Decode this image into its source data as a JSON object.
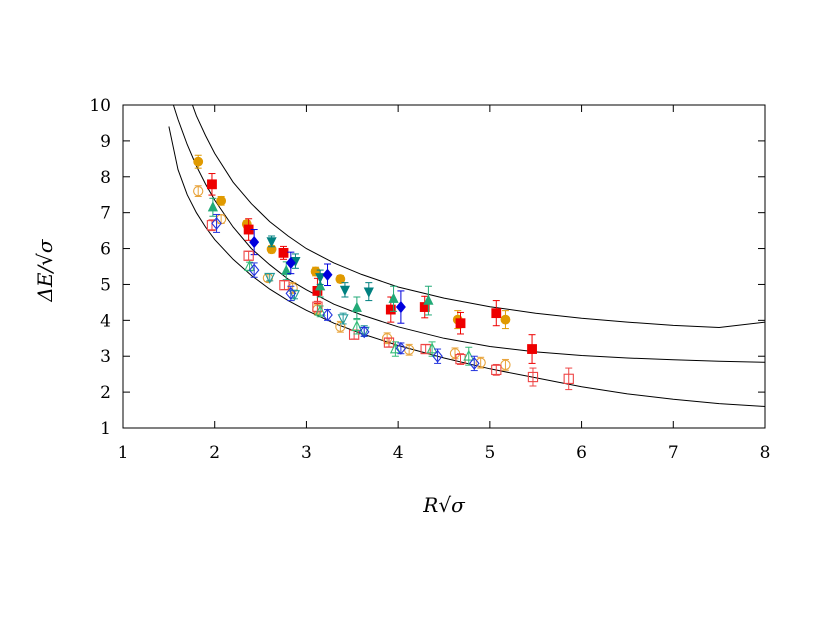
{
  "chart_data": {
    "type": "scatter",
    "title": "",
    "xlabel": "R√σ",
    "ylabel": "ΔE/√σ",
    "xlim": [
      1,
      8
    ],
    "ylim": [
      1,
      10
    ],
    "xticks": [
      1,
      2,
      3,
      4,
      5,
      6,
      7,
      8
    ],
    "yticks": [
      1,
      2,
      3,
      4,
      5,
      6,
      7,
      8,
      9,
      10
    ],
    "grid": false,
    "legend": "none",
    "curves": [
      {
        "color": "#000000",
        "x": [
          1.7,
          1.8,
          1.9,
          2.0,
          2.2,
          2.4,
          2.6,
          2.8,
          3.0,
          3.3,
          3.6,
          4.0,
          4.5,
          5.0,
          5.5,
          6.0,
          6.5,
          7.0,
          7.5,
          8.0
        ],
        "y": [
          10.4,
          9.7,
          9.15,
          8.65,
          7.85,
          7.25,
          6.75,
          6.35,
          6.0,
          5.6,
          5.28,
          4.93,
          4.62,
          4.38,
          4.2,
          4.06,
          3.95,
          3.86,
          3.8,
          3.95
        ]
      },
      {
        "color": "#000000",
        "x": [
          1.55,
          1.6,
          1.7,
          1.8,
          1.9,
          2.0,
          2.2,
          2.4,
          2.6,
          2.8,
          3.0,
          3.3,
          3.6,
          4.0,
          4.5,
          5.0,
          5.5,
          6.0,
          6.5,
          7.0,
          7.5,
          8.0
        ],
        "y": [
          10.0,
          9.6,
          8.9,
          8.3,
          7.8,
          7.35,
          6.6,
          6.0,
          5.55,
          5.15,
          4.85,
          4.45,
          4.15,
          3.82,
          3.5,
          3.27,
          3.12,
          3.02,
          2.95,
          2.9,
          2.86,
          2.83
        ]
      },
      {
        "color": "#000000",
        "x": [
          1.5,
          1.6,
          1.7,
          1.8,
          1.9,
          2.0,
          2.2,
          2.4,
          2.6,
          2.8,
          3.0,
          3.3,
          3.6,
          4.0,
          4.5,
          5.0,
          5.5,
          6.0,
          6.5,
          7.0,
          7.5,
          8.0
        ],
        "y": [
          9.4,
          8.2,
          7.5,
          7.0,
          6.6,
          6.25,
          5.7,
          5.25,
          4.87,
          4.55,
          4.28,
          3.92,
          3.63,
          3.3,
          2.95,
          2.65,
          2.4,
          2.15,
          1.95,
          1.8,
          1.68,
          1.6
        ]
      }
    ],
    "series": [
      {
        "marker": "circle-filled",
        "color": "#e09a00",
        "points": [
          {
            "x": 1.82,
            "y": 8.42,
            "e": 0.18
          },
          {
            "x": 2.07,
            "y": 7.33,
            "e": 0.12
          },
          {
            "x": 2.35,
            "y": 6.68,
            "e": 0.1
          },
          {
            "x": 2.62,
            "y": 5.98,
            "e": 0.1
          },
          {
            "x": 3.1,
            "y": 5.36,
            "e": 0.12
          },
          {
            "x": 3.37,
            "y": 5.15,
            "e": 0.1
          },
          {
            "x": 4.65,
            "y": 4.02,
            "e": 0.25
          },
          {
            "x": 5.17,
            "y": 4.02,
            "e": 0.25
          }
        ]
      },
      {
        "marker": "square-filled",
        "color": "#ee0000",
        "points": [
          {
            "x": 1.97,
            "y": 7.79,
            "e": 0.3
          },
          {
            "x": 2.37,
            "y": 6.53,
            "e": 0.3
          },
          {
            "x": 2.75,
            "y": 5.88,
            "e": 0.18
          },
          {
            "x": 3.12,
            "y": 4.82,
            "e": 0.35
          },
          {
            "x": 3.92,
            "y": 4.3,
            "e": 0.35
          },
          {
            "x": 4.29,
            "y": 4.37,
            "e": 0.3
          },
          {
            "x": 4.68,
            "y": 3.92,
            "e": 0.3
          },
          {
            "x": 5.07,
            "y": 4.2,
            "e": 0.35
          },
          {
            "x": 5.46,
            "y": 3.2,
            "e": 0.4
          }
        ]
      },
      {
        "marker": "triangle-up-filled",
        "color": "#22aa77",
        "points": [
          {
            "x": 1.98,
            "y": 7.15,
            "e": 0.25
          },
          {
            "x": 2.78,
            "y": 5.38,
            "e": 0.25
          },
          {
            "x": 3.15,
            "y": 4.95,
            "e": 0.3
          },
          {
            "x": 3.55,
            "y": 4.35,
            "e": 0.3
          },
          {
            "x": 3.95,
            "y": 4.6,
            "e": 0.35
          },
          {
            "x": 4.33,
            "y": 4.55,
            "e": 0.4
          }
        ]
      },
      {
        "marker": "triangle-down-filled",
        "color": "#008080",
        "points": [
          {
            "x": 2.62,
            "y": 6.2,
            "e": 0.15
          },
          {
            "x": 2.88,
            "y": 5.65,
            "e": 0.2
          },
          {
            "x": 3.15,
            "y": 5.2,
            "e": 0.2
          },
          {
            "x": 3.42,
            "y": 4.85,
            "e": 0.2
          },
          {
            "x": 3.68,
            "y": 4.8,
            "e": 0.25
          }
        ]
      },
      {
        "marker": "diamond-filled",
        "color": "#0000dd",
        "points": [
          {
            "x": 2.43,
            "y": 6.18,
            "e": 0.35
          },
          {
            "x": 2.83,
            "y": 5.6,
            "e": 0.3
          },
          {
            "x": 3.23,
            "y": 5.27,
            "e": 0.3
          },
          {
            "x": 4.03,
            "y": 4.37,
            "e": 0.45
          }
        ]
      },
      {
        "marker": "circle-open",
        "color": "#e8a33a",
        "points": [
          {
            "x": 1.82,
            "y": 7.6,
            "e": 0.15
          },
          {
            "x": 2.07,
            "y": 6.82,
            "e": 0.12
          },
          {
            "x": 2.58,
            "y": 5.18,
            "e": 0.1
          },
          {
            "x": 2.85,
            "y": 4.9,
            "e": 0.15
          },
          {
            "x": 3.12,
            "y": 4.3,
            "e": 0.15
          },
          {
            "x": 3.37,
            "y": 3.82,
            "e": 0.15
          },
          {
            "x": 3.88,
            "y": 3.5,
            "e": 0.15
          },
          {
            "x": 4.12,
            "y": 3.18,
            "e": 0.15
          },
          {
            "x": 4.62,
            "y": 3.08,
            "e": 0.15
          },
          {
            "x": 4.9,
            "y": 2.82,
            "e": 0.15
          },
          {
            "x": 5.17,
            "y": 2.76,
            "e": 0.15
          }
        ]
      },
      {
        "marker": "square-open",
        "color": "#ee4444",
        "points": [
          {
            "x": 1.97,
            "y": 6.65,
            "e": 0.15
          },
          {
            "x": 2.37,
            "y": 5.8,
            "e": 0.12
          },
          {
            "x": 2.76,
            "y": 4.98,
            "e": 0.12
          },
          {
            "x": 3.12,
            "y": 4.38,
            "e": 0.15
          },
          {
            "x": 3.52,
            "y": 3.6,
            "e": 0.12
          },
          {
            "x": 3.9,
            "y": 3.38,
            "e": 0.12
          },
          {
            "x": 4.3,
            "y": 3.2,
            "e": 0.12
          },
          {
            "x": 4.68,
            "y": 2.92,
            "e": 0.15
          },
          {
            "x": 5.07,
            "y": 2.62,
            "e": 0.15
          },
          {
            "x": 5.47,
            "y": 2.42,
            "e": 0.25
          },
          {
            "x": 5.86,
            "y": 2.37,
            "e": 0.3
          }
        ]
      },
      {
        "marker": "triangle-up-open",
        "color": "#33bb77",
        "points": [
          {
            "x": 2.38,
            "y": 5.5,
            "e": 0.12
          },
          {
            "x": 3.15,
            "y": 4.25,
            "e": 0.15
          },
          {
            "x": 3.55,
            "y": 3.82,
            "e": 0.2
          },
          {
            "x": 3.97,
            "y": 3.2,
            "e": 0.2
          },
          {
            "x": 4.37,
            "y": 3.2,
            "e": 0.2
          },
          {
            "x": 4.77,
            "y": 3.0,
            "e": 0.25
          }
        ]
      },
      {
        "marker": "triangle-down-open",
        "color": "#229999",
        "points": [
          {
            "x": 2.6,
            "y": 5.2,
            "e": 0.1
          },
          {
            "x": 2.87,
            "y": 4.72,
            "e": 0.12
          },
          {
            "x": 3.4,
            "y": 4.05,
            "e": 0.15
          },
          {
            "x": 3.63,
            "y": 3.7,
            "e": 0.15
          }
        ]
      },
      {
        "marker": "diamond-open",
        "color": "#2233dd",
        "points": [
          {
            "x": 2.02,
            "y": 6.7,
            "e": 0.25
          },
          {
            "x": 2.43,
            "y": 5.4,
            "e": 0.2
          },
          {
            "x": 2.83,
            "y": 4.75,
            "e": 0.2
          },
          {
            "x": 3.23,
            "y": 4.15,
            "e": 0.15
          },
          {
            "x": 3.63,
            "y": 3.68,
            "e": 0.12
          },
          {
            "x": 4.03,
            "y": 3.22,
            "e": 0.15
          },
          {
            "x": 4.43,
            "y": 3.0,
            "e": 0.2
          },
          {
            "x": 4.83,
            "y": 2.8,
            "e": 0.2
          }
        ]
      }
    ]
  }
}
